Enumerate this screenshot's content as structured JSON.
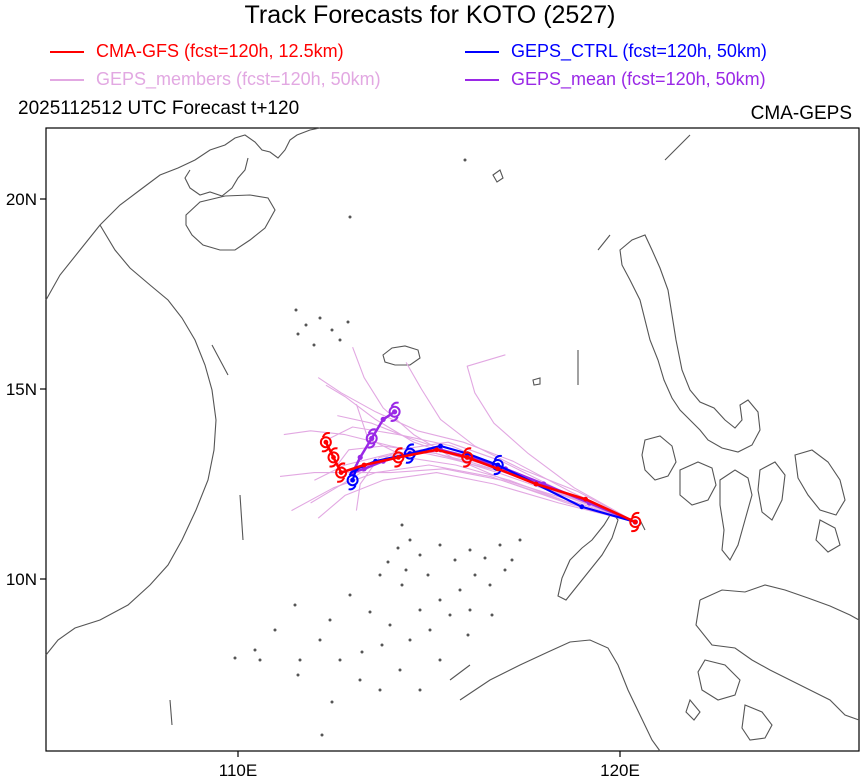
{
  "title": "Track Forecasts for KOTO (2527)",
  "legend": {
    "cma_gfs": {
      "label": "CMA-GFS (fcst=120h, 12.5km)",
      "color": "#ff0000"
    },
    "geps_members": {
      "label": "GEPS_members (fcst=120h, 50km)",
      "color": "#e2a8e2"
    },
    "geps_ctrl": {
      "label": "GEPS_CTRL (fcst=120h, 50km)",
      "color": "#0000ff"
    },
    "geps_mean": {
      "label": "GEPS_mean (fcst=120h, 50km)",
      "color": "#9a28e6"
    }
  },
  "subtitle_left": "2025112512 UTC Forecast t+120",
  "subtitle_right": "CMA-GEPS",
  "axes": {
    "lat_labels": [
      "20N",
      "15N",
      "10N"
    ],
    "lon_labels": [
      "110E",
      "120E"
    ]
  },
  "tracks": {
    "cma_gfs": [
      [
        120.4,
        11.5
      ],
      [
        119.1,
        12.1
      ],
      [
        117.8,
        12.5
      ],
      [
        116.8,
        12.9
      ],
      [
        116,
        13.2
      ],
      [
        115.2,
        13.4
      ],
      [
        114.2,
        13.2
      ],
      [
        113.3,
        13
      ],
      [
        112.7,
        12.8
      ],
      [
        112.5,
        13.2
      ],
      [
        112.3,
        13.6
      ]
    ],
    "geps_ctrl": [
      [
        120.4,
        11.5
      ],
      [
        119,
        11.9
      ],
      [
        117.8,
        12.5
      ],
      [
        116.8,
        13
      ],
      [
        116,
        13.3
      ],
      [
        115.3,
        13.5
      ],
      [
        114.5,
        13.3
      ],
      [
        113.6,
        13.1
      ],
      [
        113.1,
        12.9
      ],
      [
        113,
        12.6
      ]
    ],
    "geps_mean": [
      [
        120.4,
        11.5
      ],
      [
        119.2,
        12
      ],
      [
        118,
        12.5
      ],
      [
        117,
        12.9
      ],
      [
        116.1,
        13.2
      ],
      [
        115.3,
        13.4
      ],
      [
        114.5,
        13.3
      ],
      [
        113.8,
        13.1
      ],
      [
        113.3,
        12.9
      ],
      [
        113,
        12.8
      ],
      [
        113.2,
        13.2
      ],
      [
        113.5,
        13.7
      ],
      [
        113.8,
        14.2
      ],
      [
        114.1,
        14.4
      ]
    ],
    "geps_members": [
      [
        [
          120.4,
          11.5
        ],
        [
          118.5,
          12.3
        ],
        [
          116.8,
          13
        ],
        [
          115.3,
          13.4
        ],
        [
          114,
          13.3
        ],
        [
          112.8,
          13
        ],
        [
          112,
          12.6
        ]
      ],
      [
        [
          120.4,
          11.5
        ],
        [
          118.6,
          12.2
        ],
        [
          117,
          12.9
        ],
        [
          115.6,
          13.5
        ],
        [
          114.2,
          13.8
        ],
        [
          113,
          14
        ],
        [
          112.4,
          13.7
        ]
      ],
      [
        [
          120.4,
          11.5
        ],
        [
          118.4,
          12.1
        ],
        [
          116.6,
          12.7
        ],
        [
          115,
          13
        ],
        [
          113.6,
          12.8
        ],
        [
          112.5,
          12.4
        ],
        [
          111.4,
          11.8
        ]
      ],
      [
        [
          120.4,
          11.5
        ],
        [
          118.8,
          12.2
        ],
        [
          117.2,
          12.8
        ],
        [
          115.8,
          13.2
        ],
        [
          114.6,
          13.6
        ],
        [
          113.6,
          14.2
        ],
        [
          112.8,
          14.8
        ],
        [
          112.3,
          15.1
        ]
      ],
      [
        [
          120.4,
          11.5
        ],
        [
          118.7,
          12
        ],
        [
          117.1,
          12.6
        ],
        [
          115.7,
          13
        ],
        [
          114.4,
          13.2
        ],
        [
          113.4,
          13.7
        ],
        [
          113.1,
          14.6
        ]
      ],
      [
        [
          120.4,
          11.5
        ],
        [
          118.6,
          12.1
        ],
        [
          117,
          12.6
        ],
        [
          115.6,
          13.2
        ],
        [
          114.6,
          13.8
        ],
        [
          113.8,
          14.5
        ],
        [
          113.3,
          15.3
        ],
        [
          113,
          16.1
        ]
      ],
      [
        [
          120.4,
          11.5
        ],
        [
          118.9,
          12.3
        ],
        [
          117.4,
          12.9
        ],
        [
          116.2,
          13.5
        ],
        [
          115.3,
          14.2
        ],
        [
          114.8,
          15
        ],
        [
          114.4,
          15.7
        ]
      ],
      [
        [
          120.4,
          11.5
        ],
        [
          118.8,
          12.4
        ],
        [
          117.6,
          13.3
        ],
        [
          116.7,
          14.1
        ],
        [
          116.2,
          14.9
        ],
        [
          116,
          15.6
        ],
        [
          117,
          15.9
        ]
      ],
      [
        [
          120.4,
          11.5
        ],
        [
          118.5,
          12.3
        ],
        [
          116.9,
          13.1
        ],
        [
          115.5,
          13.6
        ],
        [
          114.2,
          13.4
        ],
        [
          112.9,
          12.6
        ],
        [
          111.9,
          12
        ]
      ],
      [
        [
          120.4,
          11.5
        ],
        [
          118.6,
          12
        ],
        [
          116.9,
          12.6
        ],
        [
          115.4,
          12.9
        ],
        [
          114,
          12.8
        ],
        [
          112.9,
          12.8
        ],
        [
          112,
          12.8
        ],
        [
          111.1,
          12.7
        ]
      ],
      [
        [
          120.4,
          11.5
        ],
        [
          118.7,
          12.2
        ],
        [
          117,
          12.8
        ],
        [
          115.4,
          13.2
        ],
        [
          114,
          13.5
        ],
        [
          112.8,
          13.8
        ],
        [
          111.9,
          13.9
        ],
        [
          111.2,
          13.8
        ]
      ],
      [
        [
          120.4,
          11.5
        ],
        [
          118.4,
          12
        ],
        [
          116.7,
          12.5
        ],
        [
          115.2,
          12.8
        ],
        [
          113.8,
          12.6
        ],
        [
          112.8,
          12.2
        ],
        [
          112.1,
          11.6
        ]
      ],
      [
        [
          120.4,
          11.5
        ],
        [
          118.7,
          12.3
        ],
        [
          117.2,
          13.1
        ],
        [
          115.9,
          13.6
        ],
        [
          114.7,
          13.9
        ],
        [
          113.6,
          14.4
        ],
        [
          112.7,
          14.9
        ],
        [
          112.1,
          15.3
        ]
      ],
      [
        [
          120.4,
          11.5
        ],
        [
          118.8,
          12.1
        ],
        [
          117.3,
          12.7
        ],
        [
          116,
          13.1
        ],
        [
          114.8,
          13.4
        ],
        [
          113.7,
          13.2
        ],
        [
          113.2,
          12.5
        ],
        [
          113.1,
          11.8
        ]
      ],
      [
        [
          120.4,
          11.5
        ],
        [
          118.5,
          12.2
        ],
        [
          116.8,
          12.8
        ],
        [
          115.2,
          13.3
        ],
        [
          113.8,
          13.5
        ],
        [
          112.9,
          13.4
        ],
        [
          112.6,
          13
        ]
      ],
      [
        [
          120.4,
          11.5
        ],
        [
          118.6,
          12.2
        ],
        [
          117,
          12.8
        ],
        [
          115.7,
          13.3
        ],
        [
          114.5,
          13.7
        ],
        [
          113.5,
          14.1
        ],
        [
          112.6,
          14.3
        ]
      ]
    ]
  }
}
